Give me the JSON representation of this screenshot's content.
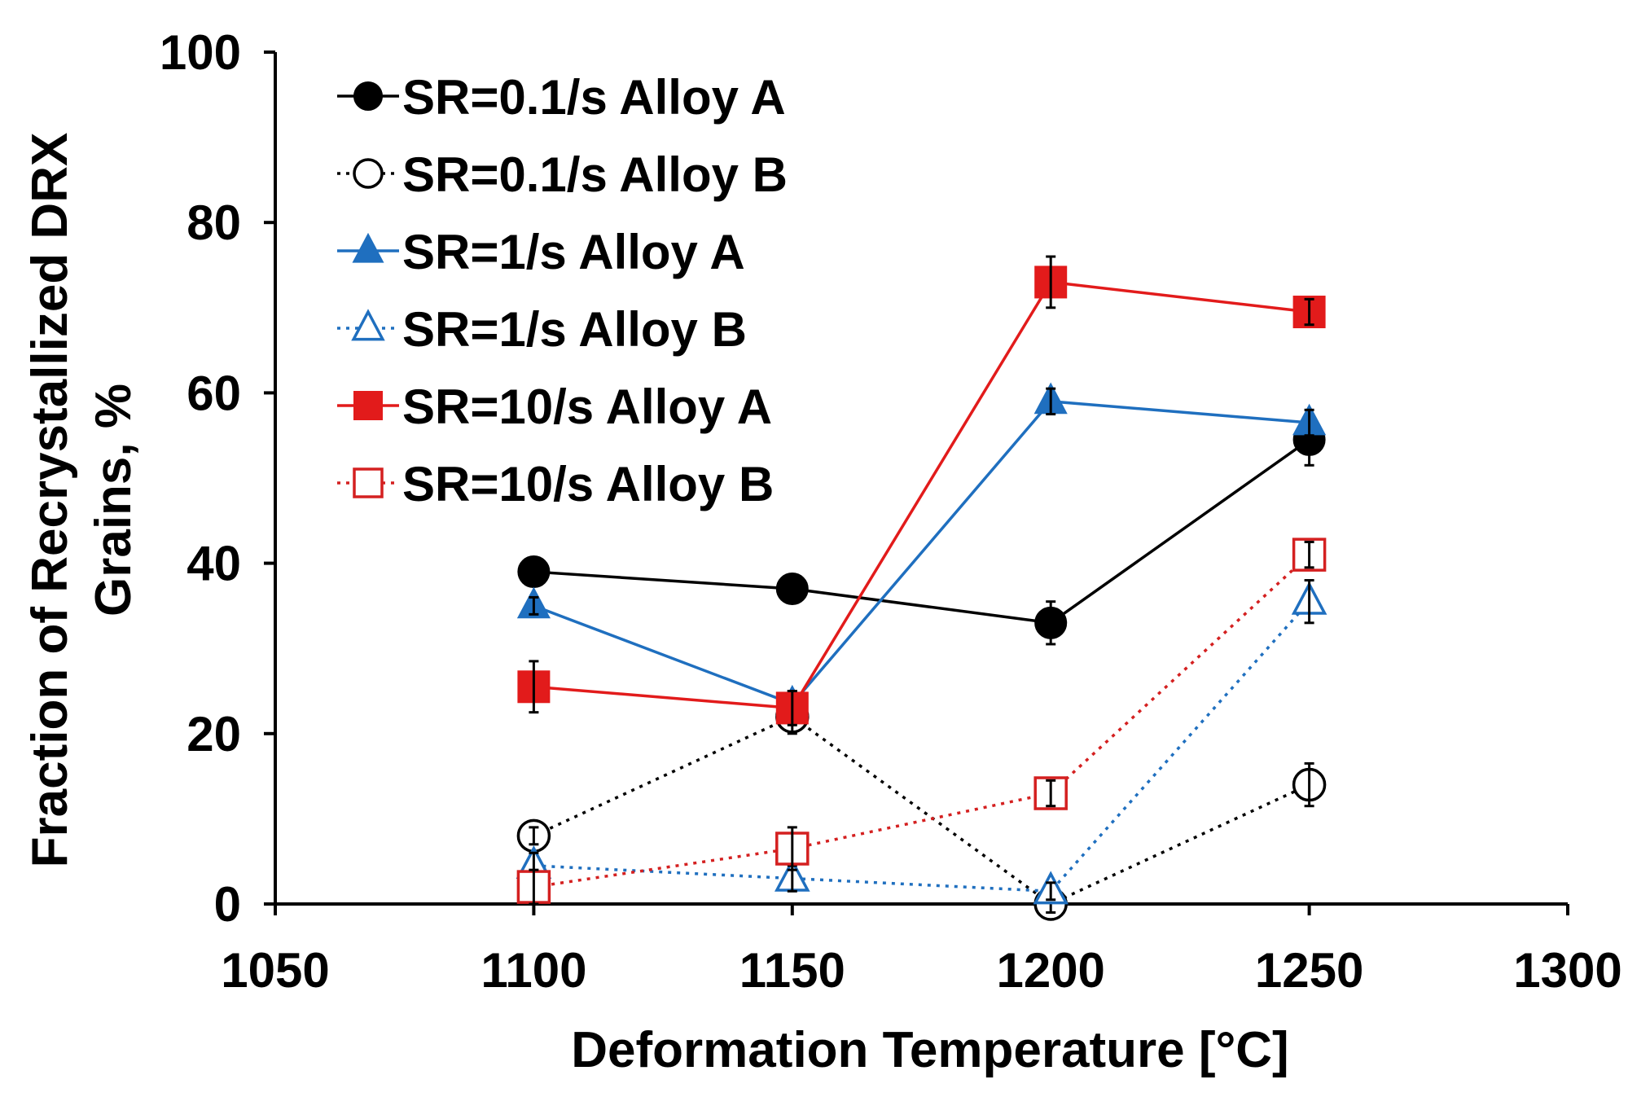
{
  "chart_data": {
    "type": "line",
    "title": "",
    "xlabel": "Deformation Temperature [°C]",
    "ylabel_lines": [
      "Fraction of Recrystallized DRX",
      "Grains, %"
    ],
    "xlim": [
      1050,
      1300
    ],
    "ylim": [
      0,
      100
    ],
    "x_ticks": [
      1050,
      1100,
      1150,
      1200,
      1250,
      1300
    ],
    "y_ticks": [
      0,
      20,
      40,
      60,
      80,
      100
    ],
    "x_tick_labels": [
      "1050",
      "1100",
      "1150",
      "1200",
      "1250",
      "1300"
    ],
    "y_tick_labels": [
      "0",
      "20",
      "40",
      "60",
      "80",
      "100"
    ],
    "grid": false,
    "legend_position": "top-left",
    "x": [
      1100,
      1150,
      1200,
      1250
    ],
    "series": [
      {
        "name": "SR=0.1/s Alloy A",
        "values": [
          39,
          37,
          33,
          54.5
        ],
        "errors": [
          1,
          1,
          2.5,
          3
        ],
        "color": "#000000",
        "marker": "circle",
        "filled": true,
        "dashed": false
      },
      {
        "name": "SR=0.1/s Alloy B",
        "values": [
          8,
          22,
          0,
          14
        ],
        "errors": [
          1,
          2,
          1,
          2.5
        ],
        "color": "#000000",
        "marker": "circle",
        "filled": false,
        "dashed": true
      },
      {
        "name": "SR=1/s Alloy A",
        "values": [
          35,
          23.5,
          59,
          56.5
        ],
        "errors": [
          1,
          1.5,
          1.5,
          1.5
        ],
        "color": "#1f6fbf",
        "marker": "triangle",
        "filled": true,
        "dashed": false
      },
      {
        "name": "SR=1/s Alloy B",
        "values": [
          4.5,
          3,
          1.5,
          35.5
        ],
        "errors": [
          1.5,
          1.5,
          1,
          2.5
        ],
        "color": "#1f6fbf",
        "marker": "triangle",
        "filled": false,
        "dashed": true
      },
      {
        "name": "SR=10/s Alloy A",
        "values": [
          25.5,
          23,
          73,
          69.5
        ],
        "errors": [
          3,
          2,
          3,
          1.5
        ],
        "color": "#e21b1b",
        "marker": "square",
        "filled": true,
        "dashed": false
      },
      {
        "name": "SR=10/s Alloy B",
        "values": [
          2,
          6.5,
          13,
          41
        ],
        "errors": [
          2,
          2.5,
          1.5,
          1.5
        ],
        "color": "#d42020",
        "marker": "square",
        "filled": false,
        "dashed": true
      }
    ]
  }
}
